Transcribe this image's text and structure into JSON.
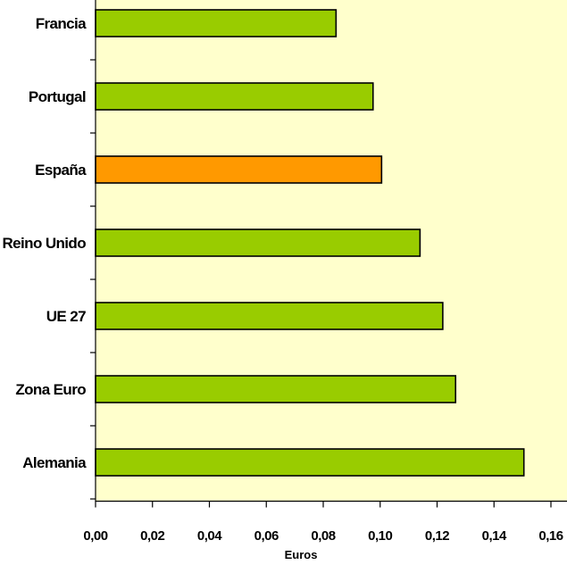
{
  "chart_data": {
    "type": "bar",
    "orientation": "horizontal",
    "categories": [
      "Francia",
      "Portugal",
      "España",
      "Reino Unido",
      "UE 27",
      "Zona Euro",
      "Alemania"
    ],
    "values": [
      0.0845,
      0.0975,
      0.1005,
      0.114,
      0.122,
      0.1265,
      0.1505
    ],
    "colors": [
      "#99cc00",
      "#99cc00",
      "#ff9900",
      "#99cc00",
      "#99cc00",
      "#99cc00",
      "#99cc00"
    ],
    "highlight_category": "España",
    "xlabel": "Euros",
    "ylabel": "",
    "title": "",
    "xlim": [
      0,
      0.16
    ],
    "xticks": [
      "0,00",
      "0,02",
      "0,04",
      "0,06",
      "0,08",
      "0,10",
      "0,12",
      "0,14",
      "0,16"
    ],
    "plot_background": "#ffffcc",
    "bar_edge_color": "#000000",
    "grid": false,
    "legend": "none"
  }
}
